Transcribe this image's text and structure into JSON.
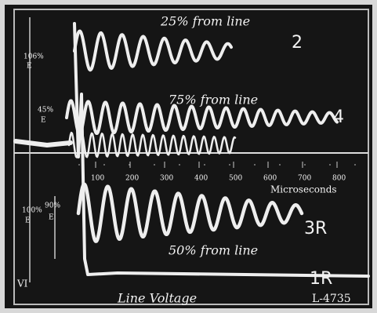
{
  "labels": {
    "top_trace": "25% from line",
    "top_trace_id": "2",
    "upper_scale": "106%",
    "upper_scale_unit": "E",
    "mid_scale": "45%",
    "mid_scale_unit": "E",
    "mid_trace": "75% from line",
    "mid_trace_id": "4",
    "time_ticks": [
      "100",
      "200",
      "300",
      "400",
      "500",
      "600",
      "700",
      "800"
    ],
    "time_unit": "Microseconds",
    "lower_scale": "100%",
    "lower_scale_unit": "E",
    "inner_scale": "90%",
    "inner_scale_unit": "E",
    "low_trace_id": "3R",
    "low_trace": "50% from line",
    "base_trace_id": "1R",
    "base_marker": "VI",
    "base_trace": "Line Voltage",
    "figure_id": "L-4735"
  }
}
